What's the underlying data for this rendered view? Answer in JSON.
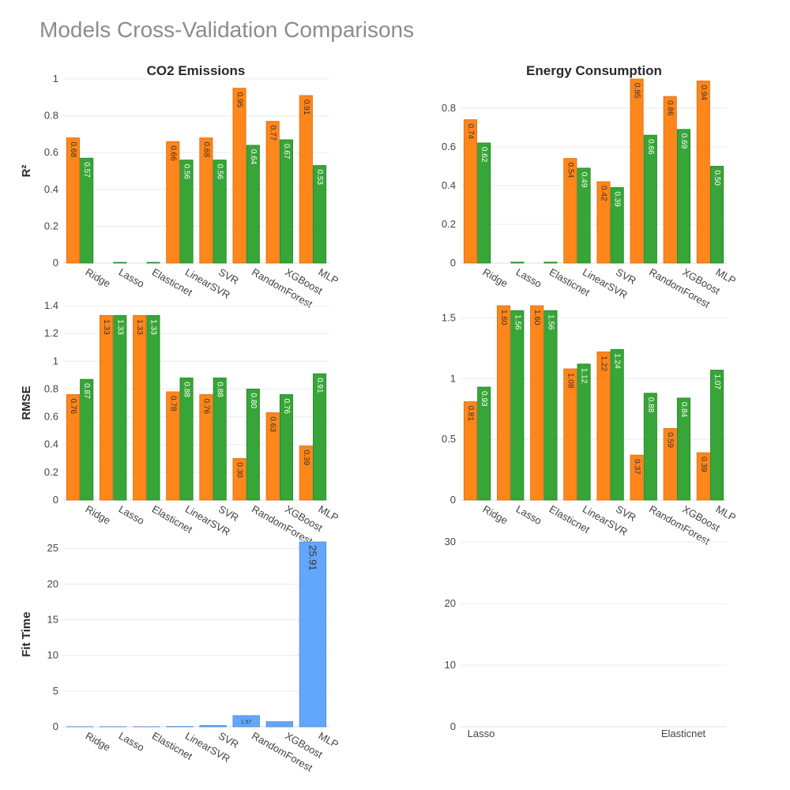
{
  "title": "Models Cross-Validation Comparisons",
  "colors": {
    "train": "#ff7f0e",
    "test": "#2ca02c",
    "fit": "#5aa2fb",
    "grid": "#ececec",
    "tick": "#444444",
    "axis_title": "#2a2a2a"
  },
  "column_titles": [
    "CO2 Emissions",
    "Energy Consumption"
  ],
  "row_titles": [
    "R²",
    "RMSE",
    "Fit Time"
  ],
  "models": [
    "Ridge",
    "Lasso",
    "Elasticnet",
    "LinearSVR",
    "SVR",
    "RandomForest",
    "XGBoost",
    "MLP"
  ],
  "chart_data": [
    {
      "type": "bar",
      "title": "CO2 Emissions",
      "ylabel": "R²",
      "categories": [
        "Ridge",
        "Lasso",
        "Elasticnet",
        "LinearSVR",
        "SVR",
        "RandomForest",
        "XGBoost",
        "MLP"
      ],
      "series": [
        {
          "color": "#ff7f0e",
          "values": [
            0.68,
            0,
            0,
            0.66,
            0.68,
            0.95,
            0.77,
            0.91
          ],
          "labels": [
            "0.68",
            "",
            "",
            "0.66",
            "0.68",
            "0.95",
            "0.77",
            "0.91"
          ]
        },
        {
          "color": "#2ca02c",
          "values": [
            0.57,
            0.004,
            0.004,
            0.56,
            0.56,
            0.64,
            0.67,
            0.53
          ],
          "labels": [
            "0.57",
            "",
            "",
            "0.56",
            "0.56",
            "0.64",
            "0.67",
            "0.53"
          ]
        }
      ],
      "ylim": [
        0,
        1
      ],
      "yticks": [
        0,
        0.2,
        0.4,
        0.6,
        0.8,
        1
      ],
      "ytick_labels": [
        "0",
        "0.2",
        "0.4",
        "0.6",
        "0.8",
        "1"
      ]
    },
    {
      "type": "bar",
      "title": "Energy Consumption",
      "ylabel": "",
      "categories": [
        "Ridge",
        "Lasso",
        "Elasticnet",
        "LinearSVR",
        "SVR",
        "RandomForest",
        "XGBoost",
        "MLP"
      ],
      "series": [
        {
          "color": "#ff7f0e",
          "values": [
            0.74,
            0,
            0,
            0.54,
            0.42,
            0.95,
            0.86,
            0.94
          ],
          "labels": [
            "0.74",
            "",
            "",
            "0.54",
            "0.42",
            "0.95",
            "0.86",
            "0.94"
          ]
        },
        {
          "color": "#2ca02c",
          "values": [
            0.62,
            0.005,
            0.005,
            0.49,
            0.39,
            0.66,
            0.69,
            0.5
          ],
          "labels": [
            "0.62",
            "",
            "",
            "0.49",
            "0.39",
            "0.66",
            "0.69",
            "0.50"
          ]
        }
      ],
      "ylim": [
        0,
        0.95
      ],
      "yticks": [
        0,
        0.2,
        0.4,
        0.6,
        0.8
      ],
      "ytick_labels": [
        "0",
        "0.2",
        "0.4",
        "0.6",
        "0.8"
      ]
    },
    {
      "type": "bar",
      "title": "",
      "ylabel": "RMSE",
      "categories": [
        "Ridge",
        "Lasso",
        "Elasticnet",
        "LinearSVR",
        "SVR",
        "RandomForest",
        "XGBoost",
        "MLP"
      ],
      "series": [
        {
          "color": "#ff7f0e",
          "values": [
            0.76,
            1.33,
            1.33,
            0.78,
            0.76,
            0.3,
            0.63,
            0.39
          ],
          "labels": [
            "0.76",
            "1.33",
            "1.33",
            "0.78",
            "0.76",
            "0.30",
            "0.63",
            "0.39"
          ]
        },
        {
          "color": "#2ca02c",
          "values": [
            0.87,
            1.33,
            1.33,
            0.88,
            0.88,
            0.8,
            0.76,
            0.91
          ],
          "labels": [
            "0.87",
            "1.33",
            "1.33",
            "0.88",
            "0.88",
            "0.80",
            "0.76",
            "0.91"
          ]
        }
      ],
      "ylim": [
        0,
        1.4
      ],
      "yticks": [
        0,
        0.2,
        0.4,
        0.6,
        0.8,
        1,
        1.2,
        1.4
      ],
      "ytick_labels": [
        "0",
        "0.2",
        "0.4",
        "0.6",
        "0.8",
        "1",
        "1.2",
        "1.4"
      ]
    },
    {
      "type": "bar",
      "title": "",
      "ylabel": "",
      "categories": [
        "Ridge",
        "Lasso",
        "Elasticnet",
        "LinearSVR",
        "SVR",
        "RandomForest",
        "XGBoost",
        "MLP"
      ],
      "series": [
        {
          "color": "#ff7f0e",
          "values": [
            0.81,
            1.6,
            1.6,
            1.08,
            1.22,
            0.37,
            0.59,
            0.39
          ],
          "labels": [
            "0.81",
            "1.60",
            "1.60",
            "1.08",
            "1.22",
            "0.37",
            "0.59",
            "0.39"
          ]
        },
        {
          "color": "#2ca02c",
          "values": [
            0.93,
            1.56,
            1.56,
            1.12,
            1.24,
            0.88,
            0.84,
            1.07
          ],
          "labels": [
            "0.93",
            "1.56",
            "1.56",
            "1.12",
            "1.24",
            "0.88",
            "0.84",
            "1.07"
          ]
        }
      ],
      "ylim": [
        0,
        1.6
      ],
      "yticks": [
        0,
        0.5,
        1,
        1.5
      ],
      "ytick_labels": [
        "0",
        "0.5",
        "1",
        "1.5"
      ]
    },
    {
      "type": "bar",
      "title": "",
      "ylabel": "Fit Time",
      "categories": [
        "Ridge",
        "Lasso",
        "Elasticnet",
        "LinearSVR",
        "SVR",
        "RandomForest",
        "XGBoost",
        "MLP"
      ],
      "series": [
        {
          "color": "#5aa2fb",
          "values": [
            0.02,
            0.02,
            0.02,
            0.05,
            0.18,
            1.57,
            0.72,
            25.91
          ],
          "labels": [
            "",
            "",
            "",
            "",
            "",
            "1.57",
            "",
            "25.91"
          ]
        }
      ],
      "ylim": [
        0,
        25.91
      ],
      "yticks": [
        0,
        5,
        10,
        15,
        20,
        25
      ],
      "ytick_labels": [
        "0",
        "5",
        "10",
        "15",
        "20",
        "25"
      ]
    },
    {
      "type": "bar",
      "title": "",
      "ylabel": "",
      "categories": [
        "Lasso",
        "Elasticnet"
      ],
      "series": [],
      "ylim": [
        0,
        30
      ],
      "yticks": [
        0,
        10,
        20,
        30
      ],
      "ytick_labels": [
        "0",
        "10",
        "20",
        "30"
      ]
    }
  ]
}
